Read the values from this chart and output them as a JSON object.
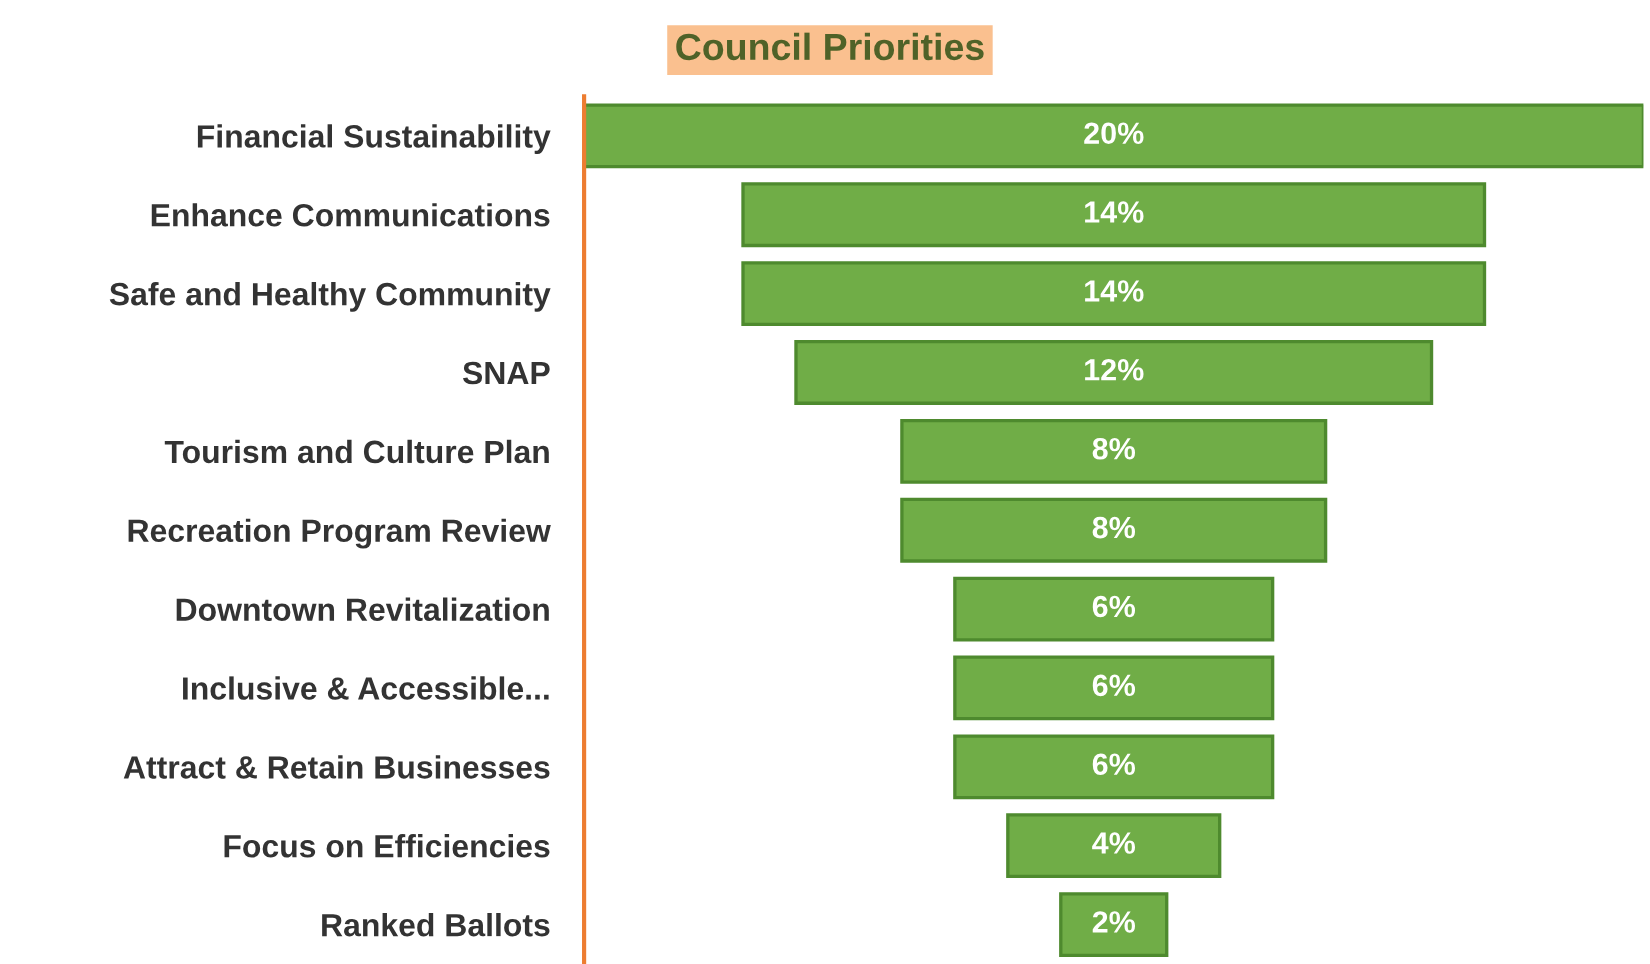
{
  "chart_data": {
    "type": "other",
    "title": "Council Priorities",
    "categories": [
      "Financial Sustainability",
      "Enhance Communications",
      "Safe and Healthy Community",
      "SNAP",
      "Tourism and Culture Plan",
      "Recreation Program Review",
      "Downtown Revitalization",
      "Inclusive & Accessible...",
      "Attract & Retain Businesses",
      "Focus on Efficiencies",
      "Ranked Ballots"
    ],
    "values": [
      20,
      14,
      14,
      12,
      8,
      8,
      6,
      6,
      6,
      4,
      2
    ],
    "value_labels": [
      "20%",
      "14%",
      "14%",
      "12%",
      "8%",
      "8%",
      "6%",
      "6%",
      "6%",
      "4%",
      "2%"
    ],
    "color": "#70ad47"
  }
}
